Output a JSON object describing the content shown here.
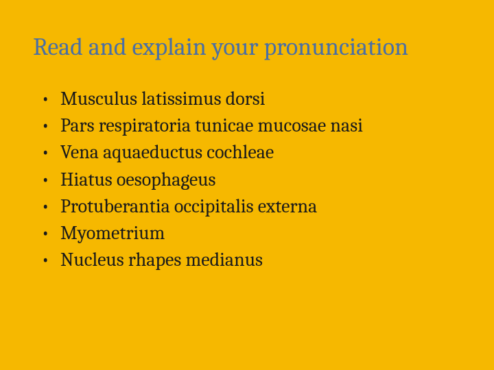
{
  "background_color": "#f6b800",
  "title": {
    "text": "Read and explain your pronunciation",
    "color": "#4a6fa5",
    "fontsize": 36
  },
  "list": {
    "bullet_char": "•",
    "item_color": "#1a1a1a",
    "item_fontsize": 28,
    "items": [
      "Musculus latissimus dorsi",
      "Pars respiratoria tunicae mucosae nasi",
      "Vena aquaeductus cochleae",
      "Hiatus oesophageus",
      "Protuberantia occipitalis externa",
      "Myometrium",
      "Nucleus rhapes medianus"
    ]
  }
}
